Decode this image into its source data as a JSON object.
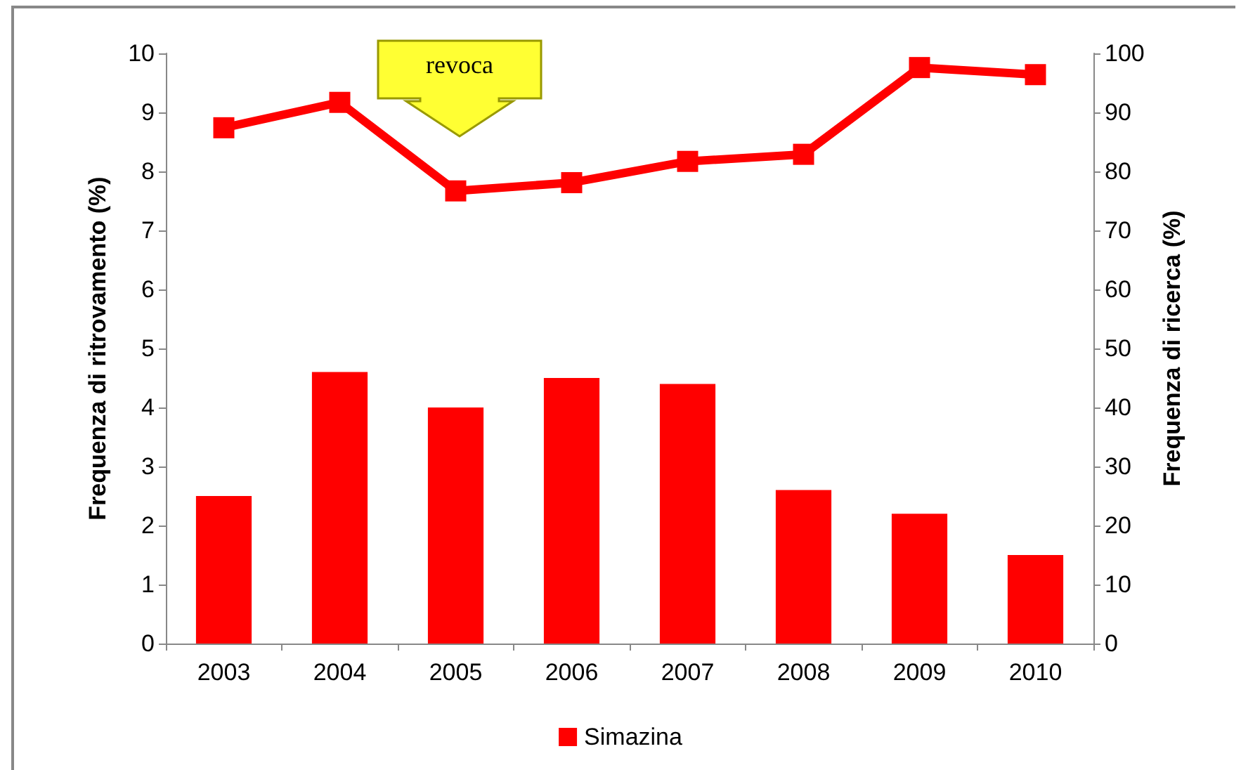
{
  "chart_data": {
    "type": "bar",
    "categories": [
      "2003",
      "2004",
      "2005",
      "2006",
      "2007",
      "2008",
      "2009",
      "2010"
    ],
    "ylabel": "Frequenza di ritrovamento (%)",
    "y2label": "Frequenza di ricerca (%)",
    "ylim": [
      0,
      10
    ],
    "yticks": [
      0,
      1,
      2,
      3,
      4,
      5,
      6,
      7,
      8,
      9,
      10
    ],
    "y2lim": [
      0,
      100
    ],
    "y2ticks": [
      0,
      10,
      20,
      30,
      40,
      50,
      60,
      70,
      80,
      90,
      100
    ],
    "series": [
      {
        "name": "Simazina",
        "color": "#ff0000",
        "values": [
          2.5,
          4.6,
          4.0,
          4.5,
          4.4,
          2.6,
          2.2,
          1.5
        ]
      },
      {
        "type": "line",
        "axis": "y2",
        "color": "#ff0000",
        "marker": "square",
        "values": [
          87.4,
          91.7,
          76.7,
          78.1,
          81.7,
          82.9,
          97.6,
          96.4
        ]
      }
    ],
    "annotations": [
      "revoca"
    ],
    "legend": "bottom",
    "grid": false
  }
}
